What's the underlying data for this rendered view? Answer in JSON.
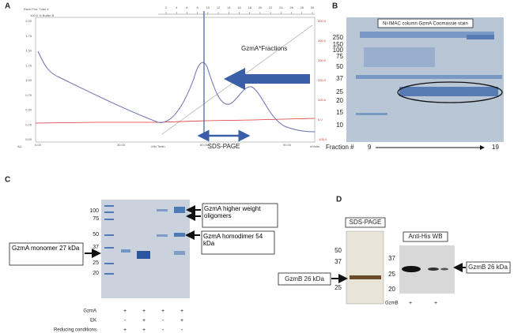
{
  "panel_a": {
    "label": "A",
    "header": [
      "Rack Pos: Tube #",
      "100.0 % Buffer B"
    ],
    "left_ticks": [
      "2.00",
      "1.75",
      "1.50",
      "1.25",
      "1.00",
      "0.75",
      "0.50",
      "0.25",
      "0.00"
    ],
    "right_ticks": [
      "500.0",
      "400.0",
      "300.0",
      "200.0",
      "100.0",
      "0.0",
      "-100.0"
    ],
    "top_ticks": [
      "2",
      "4",
      "6",
      "8",
      "10",
      "12",
      "14",
      "16",
      "18",
      "20",
      "22",
      "24",
      "26",
      "28",
      "30"
    ],
    "x_ticks": [
      "0.00",
      "30.00",
      "60.00",
      "90.00"
    ],
    "x_label": "Min Tenth",
    "left_unit": "AU",
    "right_unit": "mVolts",
    "fractions_label": "GzmA*Fractions",
    "sds_label": "SDS-PAGE"
  },
  "panel_b": {
    "label": "B",
    "title": "Ni-IMAC column GzmA Coomassie stain",
    "markers": [
      "250",
      "150",
      "100",
      "75",
      "50",
      "37",
      "25",
      "20",
      "15",
      "10"
    ],
    "fraction_label": "Fraction #",
    "fraction_start": "9",
    "fraction_end": "19"
  },
  "panel_c": {
    "label": "C",
    "markers": [
      "100",
      "75",
      "50",
      "37",
      "25",
      "20"
    ],
    "oligomer_box": "GzmA higher weight oligomers",
    "dimer_box": "GzmA homodimer 54 kDa",
    "monomer_box": "GzmA monomer 27 kDa",
    "rows": [
      {
        "name": "GzmA",
        "signs": [
          "+",
          "+",
          "+",
          "+"
        ]
      },
      {
        "name": "EK",
        "signs": [
          "-",
          "+",
          "-",
          "+"
        ]
      },
      {
        "name": "Reducing conditions",
        "signs": [
          "+",
          "+",
          "-",
          "-"
        ]
      }
    ]
  },
  "panel_d": {
    "label": "D",
    "sds_title": "SDS-PAGE",
    "sds_markers": [
      "50",
      "37",
      "25"
    ],
    "sds_band": "GzmB 26 kDa",
    "wb_title": "Anti-His WB",
    "wb_markers": [
      "37",
      "25",
      "20"
    ],
    "wb_band": "GzmB 26 kDa",
    "row_name": "GzmB",
    "signs": [
      "+",
      "+"
    ]
  }
}
